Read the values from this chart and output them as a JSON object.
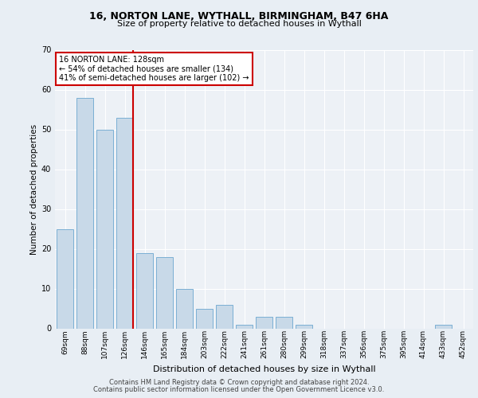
{
  "title1": "16, NORTON LANE, WYTHALL, BIRMINGHAM, B47 6HA",
  "title2": "Size of property relative to detached houses in Wythall",
  "xlabel": "Distribution of detached houses by size in Wythall",
  "ylabel": "Number of detached properties",
  "categories": [
    "69sqm",
    "88sqm",
    "107sqm",
    "126sqm",
    "146sqm",
    "165sqm",
    "184sqm",
    "203sqm",
    "222sqm",
    "241sqm",
    "261sqm",
    "280sqm",
    "299sqm",
    "318sqm",
    "337sqm",
    "356sqm",
    "375sqm",
    "395sqm",
    "414sqm",
    "433sqm",
    "452sqm"
  ],
  "values": [
    25,
    58,
    50,
    53,
    19,
    18,
    10,
    5,
    6,
    1,
    3,
    3,
    1,
    0,
    0,
    0,
    0,
    0,
    0,
    1,
    0
  ],
  "bar_color": "#c8d9e8",
  "bar_edge_color": "#7bafd4",
  "vline_x_index": 3,
  "vline_color": "#cc0000",
  "annotation_text": "16 NORTON LANE: 128sqm\n← 54% of detached houses are smaller (134)\n41% of semi-detached houses are larger (102) →",
  "annotation_box_color": "white",
  "annotation_box_edge": "#cc0000",
  "ylim": [
    0,
    70
  ],
  "yticks": [
    0,
    10,
    20,
    30,
    40,
    50,
    60,
    70
  ],
  "bg_color": "#e8eef4",
  "plot_bg_color": "#edf1f6",
  "grid_color": "#ffffff",
  "title1_fontsize": 9,
  "title2_fontsize": 8,
  "footer1": "Contains HM Land Registry data © Crown copyright and database right 2024.",
  "footer2": "Contains public sector information licensed under the Open Government Licence v3.0."
}
